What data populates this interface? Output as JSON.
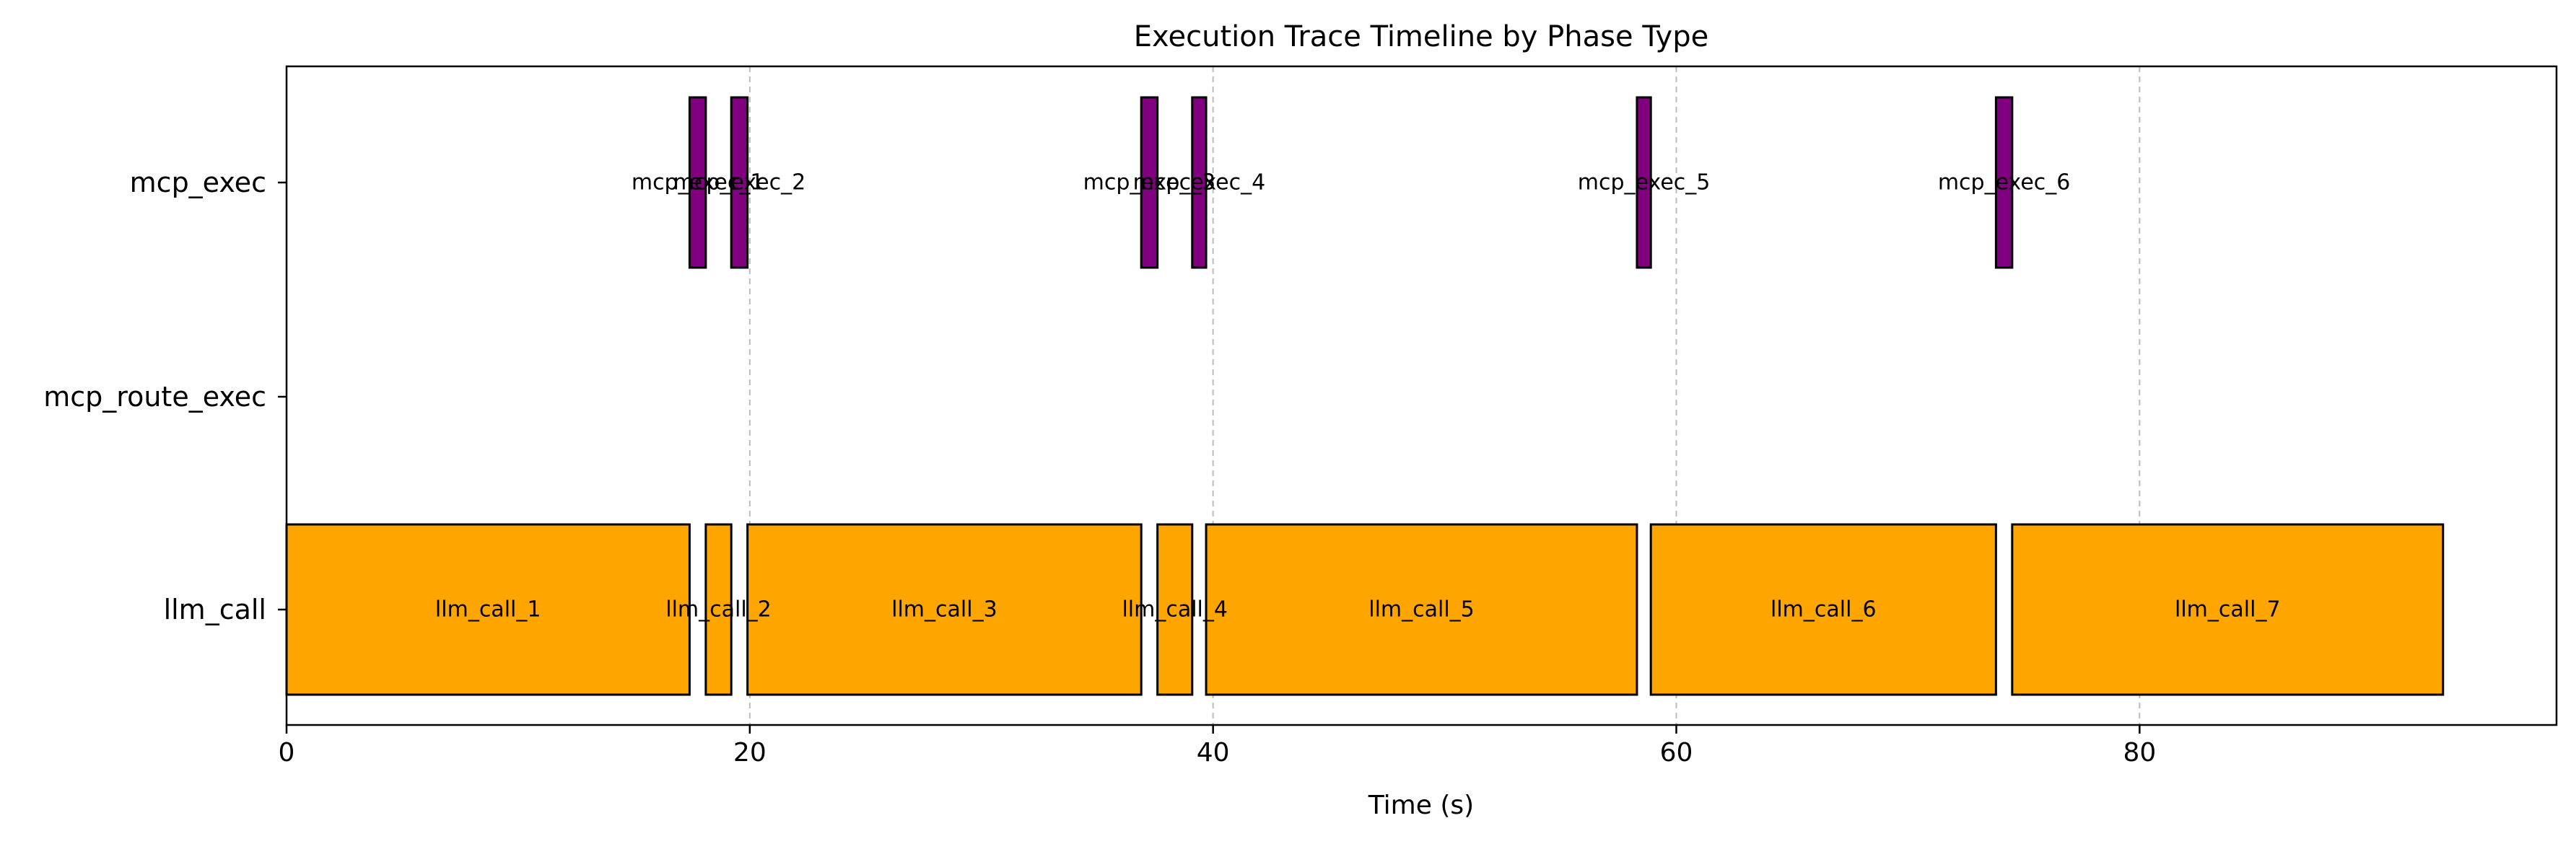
{
  "chart_data": {
    "type": "gantt",
    "title": "Execution Trace Timeline by Phase Type",
    "xlabel": "Time (s)",
    "ylabel": "",
    "xlim": [
      0,
      98
    ],
    "xticks": [
      0,
      20,
      40,
      60,
      80
    ],
    "xtick_labels": [
      "0",
      "20",
      "40",
      "60",
      "80"
    ],
    "vertical_grid": true,
    "categories": [
      "mcp_exec",
      "mcp_route_exec",
      "llm_call"
    ],
    "colors": {
      "llm_call": "#ffa500",
      "mcp_exec": "#800080",
      "edge": "#000000",
      "grid": "#bbbbbb"
    },
    "segments": [
      {
        "category": "llm_call",
        "label": "llm_call_1",
        "start": 0.0,
        "end": 17.4
      },
      {
        "category": "mcp_exec",
        "label": "mcp_exec_1",
        "start": 17.4,
        "end": 18.1
      },
      {
        "category": "llm_call",
        "label": "llm_call_2",
        "start": 18.1,
        "end": 19.2
      },
      {
        "category": "mcp_exec",
        "label": "mcp_exec_2",
        "start": 19.2,
        "end": 19.9
      },
      {
        "category": "llm_call",
        "label": "llm_call_3",
        "start": 19.9,
        "end": 36.9
      },
      {
        "category": "mcp_exec",
        "label": "mcp_exec_3",
        "start": 36.9,
        "end": 37.6
      },
      {
        "category": "llm_call",
        "label": "llm_call_4",
        "start": 37.6,
        "end": 39.1
      },
      {
        "category": "mcp_exec",
        "label": "mcp_exec_4",
        "start": 39.1,
        "end": 39.7
      },
      {
        "category": "llm_call",
        "label": "llm_call_5",
        "start": 39.7,
        "end": 58.3
      },
      {
        "category": "mcp_exec",
        "label": "mcp_exec_5",
        "start": 58.3,
        "end": 58.9
      },
      {
        "category": "llm_call",
        "label": "llm_call_6",
        "start": 58.9,
        "end": 73.8
      },
      {
        "category": "mcp_exec",
        "label": "mcp_exec_6",
        "start": 73.8,
        "end": 74.5
      },
      {
        "category": "llm_call",
        "label": "llm_call_7",
        "start": 74.5,
        "end": 93.1
      }
    ]
  }
}
